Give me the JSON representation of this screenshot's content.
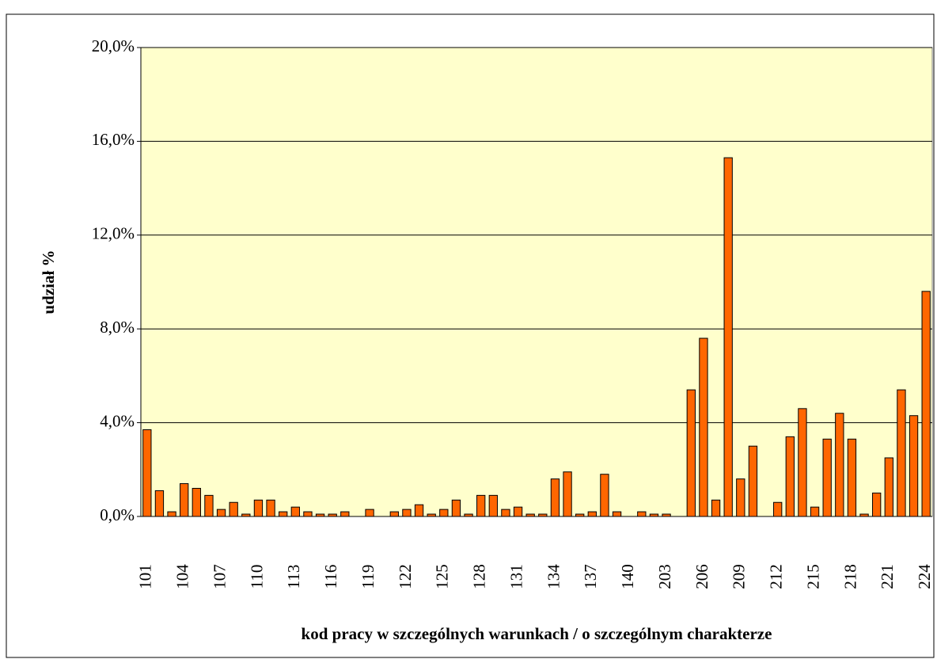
{
  "chart_data": {
    "type": "bar",
    "x_label": "kod pracy w szczególnych warunkach / o szczególnym charakterze",
    "y_label": "udział %",
    "categories": [
      "101",
      null,
      null,
      "104",
      null,
      null,
      "107",
      null,
      null,
      "110",
      null,
      null,
      "113",
      null,
      null,
      "116",
      null,
      null,
      "119",
      null,
      null,
      "122",
      null,
      null,
      "125",
      null,
      null,
      "128",
      null,
      null,
      "131",
      null,
      null,
      "134",
      null,
      null,
      "137",
      null,
      null,
      "140",
      null,
      null,
      "203",
      null,
      null,
      "206",
      null,
      null,
      "209",
      null,
      null,
      "212",
      null,
      null,
      "215",
      null,
      null,
      "218",
      null,
      null,
      "221",
      null,
      null,
      "224"
    ],
    "values": [
      3.7,
      1.1,
      0.2,
      1.4,
      1.2,
      0.9,
      0.3,
      0.6,
      0.1,
      0.7,
      0.7,
      0.2,
      0.4,
      0.2,
      0.1,
      0.1,
      0.2,
      0,
      0.3,
      0,
      0.2,
      0.3,
      0.5,
      0.1,
      0.3,
      0.7,
      0.1,
      0.9,
      0.9,
      0.3,
      0.4,
      0.1,
      0.1,
      1.6,
      1.9,
      0.1,
      0.2,
      1.8,
      0.2,
      0,
      0.2,
      0.1,
      0.1,
      0,
      5.4,
      7.6,
      0.7,
      15.3,
      1.6,
      3.0,
      0,
      0.6,
      3.4,
      4.6,
      0.4,
      3.3,
      4.4,
      3.3,
      0.1,
      1.0,
      2.5,
      5.4,
      4.3,
      9.6
    ],
    "color": "#ff6600",
    "plot_background": "#ffffcc",
    "ylim": [
      0,
      20
    ],
    "yticks": [
      {
        "value": 0,
        "label": "0,0%"
      },
      {
        "value": 4,
        "label": "4,0%"
      },
      {
        "value": 8,
        "label": "8,0%"
      },
      {
        "value": 12,
        "label": "12,0%"
      },
      {
        "value": 16,
        "label": "16,0%"
      },
      {
        "value": 20,
        "label": "20,0%"
      }
    ],
    "grid": true
  }
}
